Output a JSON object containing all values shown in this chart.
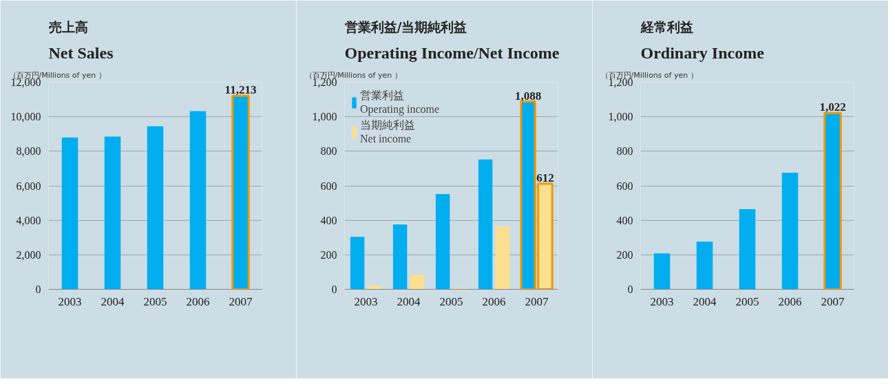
{
  "chart_data": [
    {
      "type": "bar",
      "title": "売上高",
      "subtitle": "Net Sales",
      "ylabel": "（百万円/Millions of yen ）",
      "categories": [
        "2003",
        "2004",
        "2005",
        "2006",
        "2007"
      ],
      "series": [
        {
          "color": "#00aeef",
          "values": [
            8800,
            8850,
            9450,
            10330,
            11213
          ],
          "value_labels": [
            null,
            null,
            null,
            null,
            "11,213"
          ]
        }
      ],
      "ylim": [
        0,
        12000
      ],
      "yticks": [
        {
          "value": 0,
          "label": "0"
        },
        {
          "value": 2000,
          "label": "2,000"
        },
        {
          "value": 4000,
          "label": "4,000"
        },
        {
          "value": 6000,
          "label": "6,000"
        },
        {
          "value": 8000,
          "label": "8,000"
        },
        {
          "value": 10000,
          "label": "10,000"
        },
        {
          "value": 12000,
          "label": "12,000"
        }
      ],
      "grid": "y"
    },
    {
      "type": "bar",
      "title": "営業利益/当期純利益",
      "subtitle": "Operating Income/Net Income",
      "ylabel": "（百万円/Millions of yen ）",
      "categories": [
        "2003",
        "2004",
        "2005",
        "2006",
        "2007"
      ],
      "series": [
        {
          "name": "営業利益\nOperating income",
          "color": "#00aeef",
          "values": [
            304,
            376,
            552,
            752,
            1088
          ],
          "value_labels": [
            null,
            null,
            null,
            null,
            "1,088"
          ]
        },
        {
          "name": "当期純利益\nNet income",
          "color": "#fde08f",
          "values": [
            20,
            84,
            8,
            364,
            612
          ],
          "value_labels": [
            null,
            null,
            null,
            null,
            "612"
          ]
        }
      ],
      "ylim": [
        0,
        1200
      ],
      "yticks": [
        0,
        200,
        400,
        600,
        800,
        {
          "value": 1000,
          "label": "1,000"
        },
        {
          "value": 1200,
          "label": "1,200"
        }
      ],
      "grid": "y",
      "legend": "top left"
    },
    {
      "type": "bar",
      "title": "経常利益",
      "subtitle": "Ordinary Income",
      "ylabel": "（百万円/Millions of yen ）",
      "categories": [
        "2003",
        "2004",
        "2005",
        "2006",
        "2007"
      ],
      "series": [
        {
          "color": "#00aeef",
          "values": [
            208,
            276,
            464,
            676,
            1022
          ],
          "value_labels": [
            null,
            null,
            null,
            null,
            "1,022"
          ]
        }
      ],
      "ylim": [
        0,
        1200
      ],
      "yticks": [
        0,
        200,
        400,
        600,
        800,
        {
          "value": 1000,
          "label": "1,000"
        },
        {
          "value": 1200,
          "label": "1,200"
        }
      ],
      "grid": "y"
    }
  ]
}
